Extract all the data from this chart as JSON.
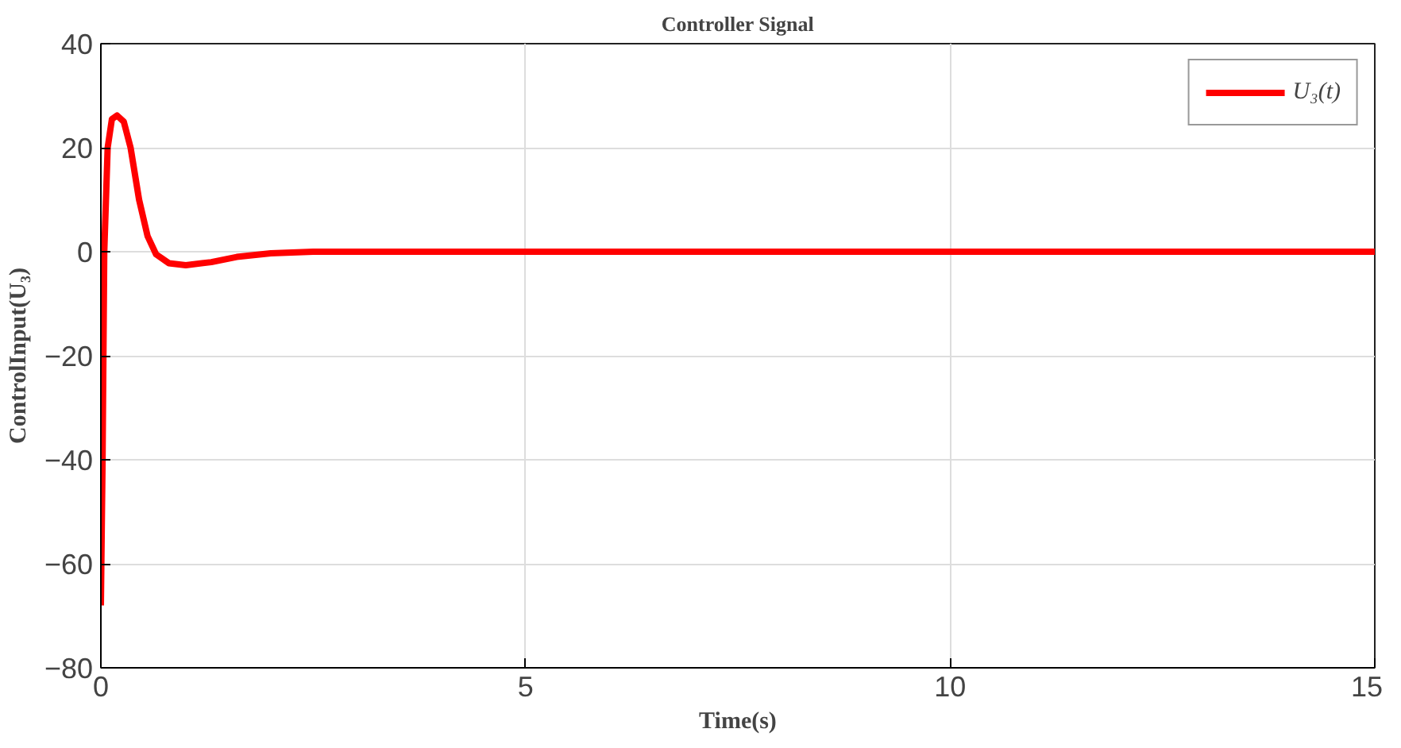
{
  "chart_data": {
    "type": "line",
    "title": "Controller Signal",
    "xlabel": "Time(s)",
    "ylabel": "ControlInput(U₃)",
    "xlim": [
      0,
      15
    ],
    "ylim": [
      -80,
      40
    ],
    "xticks": [
      0,
      5,
      10,
      15
    ],
    "yticks": [
      -80,
      -60,
      -40,
      -20,
      0,
      20,
      40
    ],
    "grid": true,
    "legend": "top right",
    "series": [
      {
        "name": "U₃(t)",
        "color": "#ff0000",
        "x": [
          0,
          0.02,
          0.04,
          0.08,
          0.13,
          0.19,
          0.27,
          0.35,
          0.45,
          0.55,
          0.65,
          0.8,
          1.0,
          1.3,
          1.6,
          2.0,
          2.5,
          15
        ],
        "values": [
          -68,
          -40,
          0,
          20,
          25.5,
          26.2,
          25,
          20,
          10,
          3,
          -0.5,
          -2.2,
          -2.6,
          -2.0,
          -1.0,
          -0.3,
          0,
          0
        ]
      }
    ]
  }
}
